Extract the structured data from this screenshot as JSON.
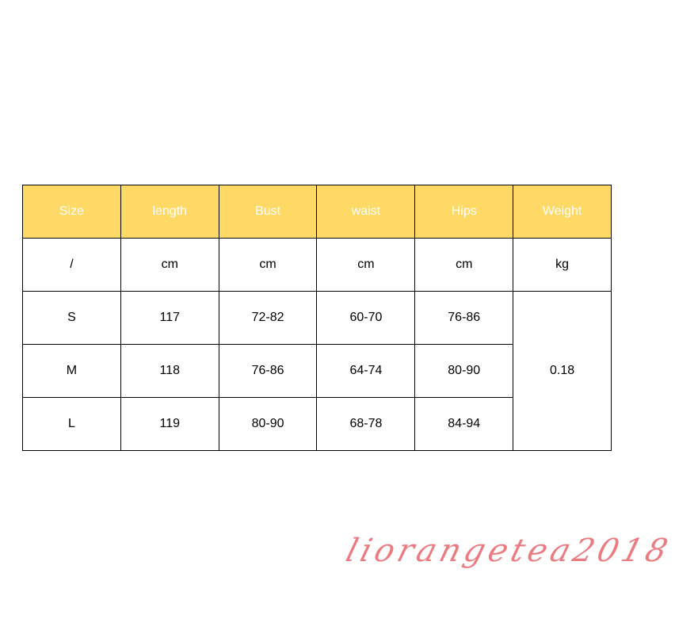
{
  "colors": {
    "header_bg": "#FFD966",
    "header_text": "#FFFFFF",
    "signature": "#E8646A"
  },
  "table": {
    "headers": [
      "Size",
      "length",
      "Bust",
      "waist",
      "Hips",
      "Weight"
    ],
    "units": [
      "/",
      "cm",
      "cm",
      "cm",
      "cm",
      "kg"
    ],
    "rows": [
      [
        "S",
        "117",
        "72-82",
        "60-70",
        "76-86"
      ],
      [
        "M",
        "118",
        "76-86",
        "64-74",
        "80-90"
      ],
      [
        "L",
        "119",
        "80-90",
        "68-78",
        "84-94"
      ]
    ],
    "weight": "0.18"
  },
  "watermark": "liorangetea2018"
}
